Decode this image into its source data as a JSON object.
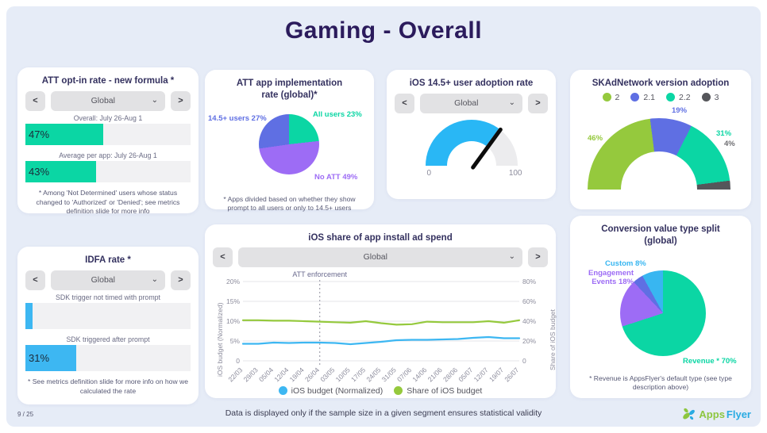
{
  "page": {
    "title": "Gaming - Overall",
    "page_number": "9 / 25",
    "footer_note": "Data is displayed only if the sample size in a given segment ensures statistical validity",
    "logo_apps": "Apps",
    "logo_flyer": "Flyer"
  },
  "ui": {
    "prev": "<",
    "next": ">",
    "chevron": "⌄"
  },
  "colors": {
    "background": "#e6ecf7",
    "title": "#2b1b5c",
    "teal": "#0bd6a4",
    "sky_blue": "#3db7f2",
    "periwinkle": "#5f6fe3",
    "purple": "#9d6cf5",
    "green": "#95c93d",
    "dark_gray": "#55565a"
  },
  "att_opt_in": {
    "title": "ATT opt-in rate - new formula *",
    "dropdown_value": "Global",
    "bar_color": "#0bd6a4",
    "bars": [
      {
        "label": "Overall: July 26-Aug 1",
        "value": 47,
        "text": "47%"
      },
      {
        "label": "Average per app: July 26-Aug 1",
        "value": 43,
        "text": "43%"
      }
    ],
    "footnote": "* Among 'Not Determined' users whose status changed to 'Authorized' or 'Denied'; see metrics definition slide for more info"
  },
  "idfa": {
    "title": "IDFA rate *",
    "dropdown_value": "Global",
    "bar_color": "#3db7f2",
    "bars": [
      {
        "label": "SDK trigger not timed with prompt",
        "value": 4.5,
        "text": ""
      },
      {
        "label": "SDK triggered after prompt",
        "value": 31,
        "text": "31%"
      }
    ],
    "footnote": "* See metrics definition slide for more info on how we calculated the rate"
  },
  "att_impl": {
    "title": "ATT app implementation rate (global)*",
    "labels": {
      "left": {
        "text": "14.5+ users 27%",
        "color": "#5f6fe3"
      },
      "right": {
        "text": "All users 23%",
        "color": "#0bd6a4"
      },
      "bottom": {
        "text": "No ATT 49%",
        "color": "#9d6cf5"
      }
    },
    "footnote": "* Apps divided based on whether they show prompt to all users or only to 14.5+ users"
  },
  "adoption_gauge": {
    "title": "iOS 14.5+ user adoption rate",
    "dropdown_value": "Global",
    "min_label": "0",
    "max_label": "100"
  },
  "skad": {
    "title": "SKAdNetwork version adoption",
    "legend": [
      {
        "label": "2",
        "color": "#95c93d"
      },
      {
        "label": "2.1",
        "color": "#5f6fe3"
      },
      {
        "label": "2.2",
        "color": "#0bd6a4"
      },
      {
        "label": "3",
        "color": "#55565a"
      }
    ],
    "labels": [
      {
        "text": "46%",
        "color": "#95c93d"
      },
      {
        "text": "19%",
        "color": "#5f6fe3"
      },
      {
        "text": "31%",
        "color": "#0bd6a4"
      },
      {
        "text": "4%",
        "color": "#6e6e72"
      }
    ]
  },
  "ad_spend": {
    "title": "iOS share of app install ad spend",
    "dropdown_value": "Global",
    "left_axis_title": "iOS budget (Normalized)",
    "right_axis_title": "Share of iOS budget",
    "legend": [
      {
        "label": "iOS budget (Normalized)",
        "color": "#3db7f2"
      },
      {
        "label": "Share of iOS budget",
        "color": "#95c93d"
      }
    ]
  },
  "conversion": {
    "title": "Conversion value type split (global)",
    "labels": {
      "custom": {
        "text": "Custom 8%",
        "color": "#38b6f1"
      },
      "engagement": {
        "text": "Engagement Events 18%",
        "color": "#9d6cf5"
      },
      "revenue": {
        "text": "Revenue * 70%",
        "color": "#0bd6a4"
      }
    },
    "footnote": "* Revenue is AppsFlyer's default type (see type description above)"
  },
  "chart_data": [
    {
      "id": "att_opt_in_bars",
      "type": "bar",
      "title": "ATT opt-in rate - new formula *",
      "categories": [
        "Overall: July 26-Aug 1",
        "Average per app: July 26-Aug 1"
      ],
      "values": [
        47,
        43
      ],
      "ylim": [
        0,
        100
      ],
      "unit": "%"
    },
    {
      "id": "idfa_bars",
      "type": "bar",
      "title": "IDFA rate *",
      "categories": [
        "SDK trigger not timed with prompt",
        "SDK triggered after prompt"
      ],
      "values": [
        4.5,
        31
      ],
      "ylim": [
        0,
        100
      ],
      "unit": "%",
      "note": "first bar value estimated, no data label shown"
    },
    {
      "id": "att_impl_pie",
      "type": "pie",
      "title": "ATT app implementation rate (global)*",
      "categories": [
        "All users",
        "No ATT",
        "14.5+ users"
      ],
      "values": [
        23,
        49,
        27
      ],
      "colors": [
        "#0bd6a4",
        "#9d6cf5",
        "#5f6fe3"
      ]
    },
    {
      "id": "adoption_gauge",
      "type": "gauge",
      "title": "iOS 14.5+ user adoption rate",
      "value": 70,
      "range": [
        0,
        100
      ],
      "color": "#29b7f5",
      "track_color": "#ececee",
      "note": "needle position estimated, no numeric label shown"
    },
    {
      "id": "skad_semi",
      "type": "pie",
      "title": "SKAdNetwork version adoption",
      "categories": [
        "2",
        "2.1",
        "2.2",
        "3"
      ],
      "values": [
        46,
        19,
        31,
        4
      ],
      "colors": [
        "#95c93d",
        "#5f6fe3",
        "#0bd6a4",
        "#55565a"
      ],
      "layout": "semicircle-donut"
    },
    {
      "id": "ad_spend_line",
      "type": "line",
      "title": "iOS share of app install ad spend",
      "x": [
        "22/03",
        "29/03",
        "05/04",
        "12/04",
        "19/04",
        "26/04",
        "03/05",
        "10/05",
        "17/05",
        "24/05",
        "31/05",
        "07/06",
        "14/06",
        "21/06",
        "28/06",
        "05/07",
        "12/07",
        "19/07",
        "26/07"
      ],
      "series": [
        {
          "name": "iOS budget (Normalized)",
          "axis": "left",
          "color": "#3db7f2",
          "values": [
            4.3,
            4.3,
            4.6,
            4.5,
            4.6,
            4.6,
            4.5,
            4.2,
            4.5,
            4.8,
            5.2,
            5.3,
            5.3,
            5.4,
            5.5,
            5.8,
            6.0,
            5.7,
            5.7
          ]
        },
        {
          "name": "Share of iOS budget",
          "axis": "right",
          "color": "#95c93d",
          "values": [
            41,
            41,
            40.5,
            40.5,
            40,
            39.5,
            39,
            38.5,
            40,
            38,
            36.5,
            37,
            39.5,
            39,
            39,
            39,
            40,
            38.5,
            41
          ]
        }
      ],
      "left_ticks": [
        "20%",
        "15%",
        "10%",
        "5%",
        "0"
      ],
      "right_ticks": [
        "80%",
        "60%",
        "40%",
        "20%",
        "0"
      ],
      "left_max": 20,
      "right_max": 80,
      "annotation": "ATT enforcement",
      "annotation_index": 5,
      "grid": true,
      "legend_position": "bottom"
    },
    {
      "id": "conversion_pie",
      "type": "pie",
      "title": "Conversion value type split (global)",
      "categories": [
        "Revenue *",
        "Engagement Events",
        "Other",
        "Custom"
      ],
      "values": [
        70,
        18,
        4,
        8
      ],
      "colors": [
        "#0bd6a4",
        "#9d6cf5",
        "#5f6fe3",
        "#38b6f1"
      ],
      "note": "third slice unlabeled in source"
    }
  ]
}
